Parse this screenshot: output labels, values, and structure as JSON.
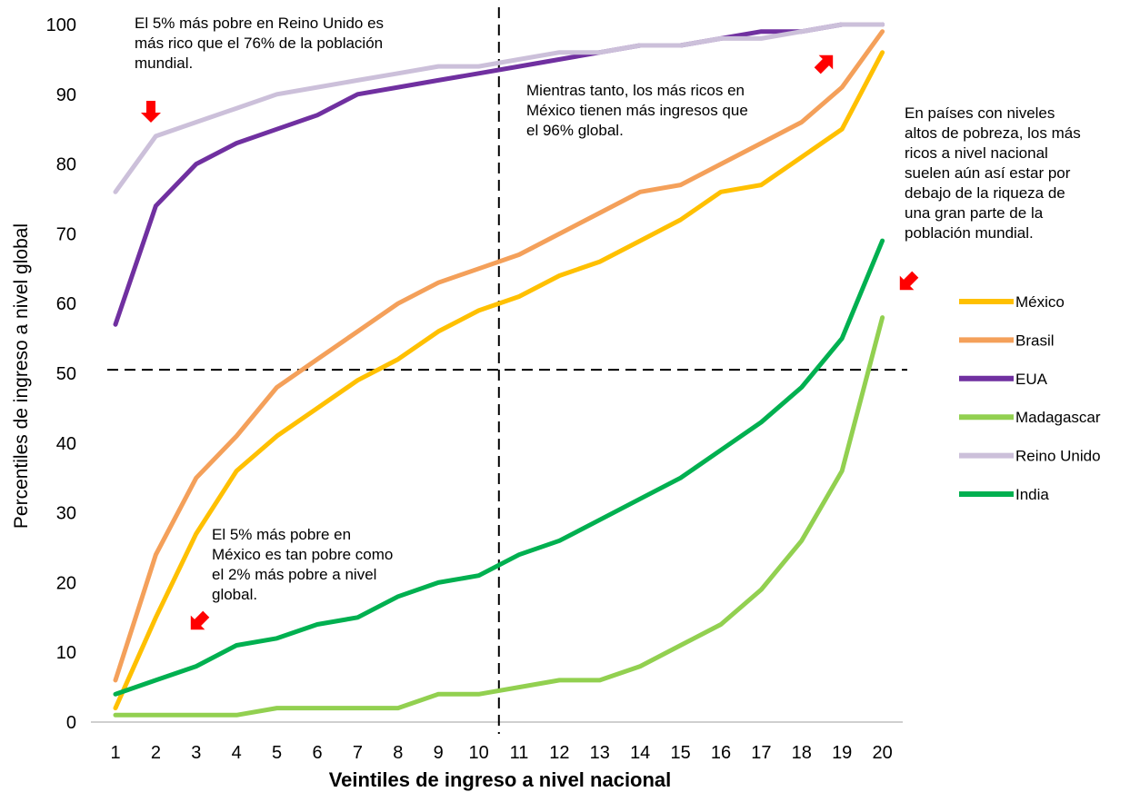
{
  "chart_data": {
    "type": "line",
    "title": "",
    "xlabel": "Veintiles de ingreso a nivel nacional",
    "ylabel": "Percentiles de ingreso a nivel global",
    "xlim": [
      1,
      20
    ],
    "ylim": [
      0,
      100
    ],
    "x": [
      1,
      2,
      3,
      4,
      5,
      6,
      7,
      8,
      9,
      10,
      11,
      12,
      13,
      14,
      15,
      16,
      17,
      18,
      19,
      20
    ],
    "x_tick_labels": [
      "1",
      "2",
      "3",
      "4",
      "5",
      "6",
      "7",
      "8",
      "9",
      "10",
      "11",
      "12",
      "13",
      "14",
      "15",
      "16",
      "17",
      "18",
      "19",
      "20"
    ],
    "y_tick_labels": [
      "0",
      "10",
      "20",
      "30",
      "40",
      "50",
      "60",
      "70",
      "80",
      "90",
      "100"
    ],
    "y_ticks": [
      0,
      10,
      20,
      30,
      40,
      50,
      60,
      70,
      80,
      90,
      100
    ],
    "grid": false,
    "legend_position": "right",
    "reference_lines": {
      "horizontal_y": 50.5,
      "vertical_x": 10.5
    },
    "series": [
      {
        "name": "México",
        "color": "#FFC000",
        "values": [
          2,
          15,
          27,
          36,
          41,
          45,
          49,
          52,
          56,
          59,
          61,
          64,
          66,
          69,
          72,
          76,
          77,
          81,
          85,
          96
        ]
      },
      {
        "name": "Brasil",
        "color": "#F4A05A",
        "values": [
          6,
          24,
          35,
          41,
          48,
          52,
          56,
          60,
          63,
          65,
          67,
          70,
          73,
          76,
          77,
          80,
          83,
          86,
          91,
          99
        ]
      },
      {
        "name": "EUA",
        "color": "#7030A0",
        "values": [
          57,
          74,
          80,
          83,
          85,
          87,
          90,
          91,
          92,
          93,
          94,
          95,
          96,
          97,
          97,
          98,
          99,
          99,
          100,
          100
        ]
      },
      {
        "name": "Madagascar",
        "color": "#92D050",
        "values": [
          1,
          1,
          1,
          1,
          2,
          2,
          2,
          2,
          4,
          4,
          5,
          6,
          6,
          8,
          11,
          14,
          19,
          26,
          36,
          58
        ]
      },
      {
        "name": "Reino Unido",
        "color": "#CCC0DA",
        "values": [
          76,
          84,
          86,
          88,
          90,
          91,
          92,
          93,
          94,
          94,
          95,
          96,
          96,
          97,
          97,
          98,
          98,
          99,
          100,
          100
        ]
      },
      {
        "name": "India",
        "color": "#00B050",
        "values": [
          4,
          6,
          8,
          11,
          12,
          14,
          15,
          18,
          20,
          21,
          24,
          26,
          29,
          32,
          35,
          39,
          43,
          48,
          55,
          69
        ]
      }
    ],
    "annotations": [
      {
        "lines": [
          "El 5% más pobre en Reino Unido es",
          "más rico que el 76% de la población",
          "mundial."
        ]
      },
      {
        "lines": [
          "Mientras tanto, los más ricos en",
          "México tienen más ingresos que",
          "el 96% global."
        ]
      },
      {
        "lines": [
          "En países con niveles",
          "altos de pobreza, los más",
          "ricos a nivel nacional",
          "suelen aún así estar por",
          "debajo de la riqueza de",
          "una gran parte de la",
          "población mundial."
        ]
      },
      {
        "lines": [
          "El 5% más pobre en",
          "México es tan pobre como",
          "el 2% más pobre a nivel",
          "global."
        ]
      }
    ]
  }
}
